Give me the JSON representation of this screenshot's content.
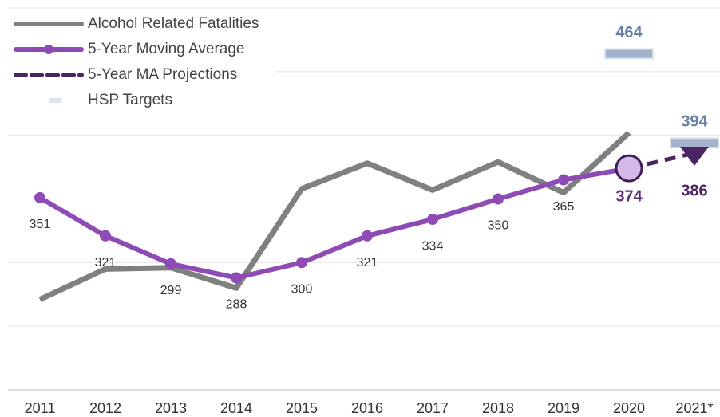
{
  "chart_data": {
    "type": "line",
    "categories": [
      "2011",
      "2012",
      "2013",
      "2014",
      "2015",
      "2016",
      "2017",
      "2018",
      "2019",
      "2020",
      "2021*"
    ],
    "ylim": [
      200,
      500
    ],
    "yticks": [
      200,
      250,
      300,
      350,
      400,
      450,
      500
    ],
    "grid": true,
    "legend": "top-left",
    "series": [
      {
        "name": "Alcohol Related Fatalities",
        "color": "#808080",
        "style": "solid",
        "values": [
          271,
          295,
          296,
          280,
          358,
          378,
          357,
          379,
          355,
          402,
          null
        ]
      },
      {
        "name": "5-Year Moving Average",
        "color": "#8e4bb5",
        "style": "markers",
        "values": [
          351,
          321,
          299,
          288,
          300,
          321,
          334,
          350,
          365,
          374,
          null
        ]
      },
      {
        "name": "5-Year MA Projections",
        "color": "#4b2463",
        "style": "dashed",
        "values": [
          null,
          null,
          null,
          null,
          null,
          null,
          null,
          null,
          null,
          374,
          386
        ]
      },
      {
        "name": "HSP Targets",
        "color": "#a4b3cc",
        "style": "target",
        "values": [
          null,
          null,
          null,
          null,
          null,
          null,
          null,
          null,
          null,
          464,
          394
        ]
      }
    ]
  }
}
